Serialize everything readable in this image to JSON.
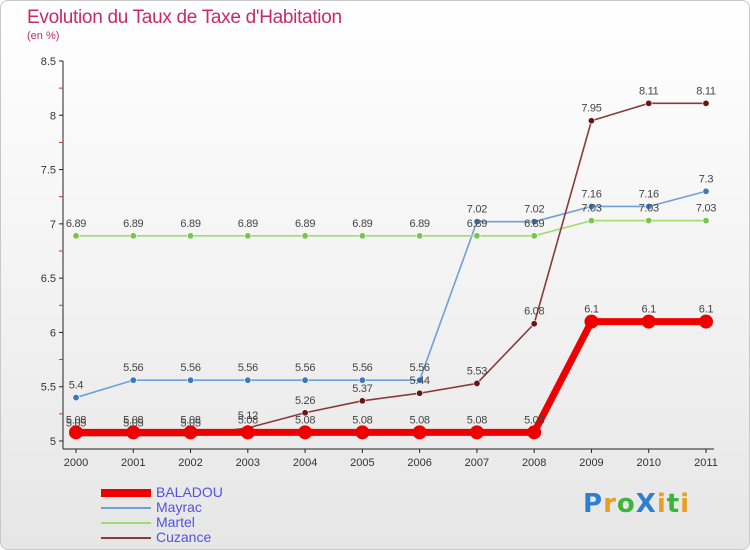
{
  "title": "Evolution du Taux de Taxe d'Habitation",
  "subtitle": "(en %)",
  "logo": {
    "text": "ProXiti",
    "letters": [
      {
        "ch": "P",
        "color": "#2f7fd0"
      },
      {
        "ch": "r",
        "color": "#e8a020"
      },
      {
        "ch": "o",
        "color": "#3db43d"
      },
      {
        "ch": "X",
        "color": "#2f7fd0"
      },
      {
        "ch": "i",
        "color": "#e8a020"
      },
      {
        "ch": "t",
        "color": "#3db43d"
      },
      {
        "ch": "i",
        "color": "#e8a020"
      }
    ]
  },
  "chart_data": {
    "type": "line",
    "x": [
      "2000",
      "2001",
      "2002",
      "2003",
      "2004",
      "2005",
      "2006",
      "2007",
      "2008",
      "2009",
      "2010",
      "2011"
    ],
    "ylim": [
      5,
      8.5
    ],
    "yticks": [
      "5",
      "5.5",
      "6",
      "6.5",
      "7",
      "7.5",
      "8",
      "8.5"
    ],
    "grid": false,
    "legend_position": "bottom-left",
    "series": [
      {
        "name": "BALADOU",
        "color": "#ee0000",
        "dot": "#ee0000",
        "width": 7,
        "r": 7,
        "values": [
          5.08,
          5.08,
          5.08,
          5.08,
          5.08,
          5.08,
          5.08,
          5.08,
          5.08,
          6.1,
          6.1,
          6.1
        ],
        "labels": [
          "5.08",
          "5.08",
          "5.08",
          "5.08",
          "5.08",
          "5.08",
          "5.08",
          "5.08",
          "5.08",
          "6.1",
          "6.1",
          "6.1"
        ]
      },
      {
        "name": "Mayrac",
        "color": "#6fa0d8",
        "dot": "#3a78c0",
        "width": 1.6,
        "r": 3.2,
        "values": [
          5.4,
          5.56,
          5.56,
          5.56,
          5.56,
          5.56,
          5.56,
          7.02,
          7.02,
          7.16,
          7.16,
          7.3
        ],
        "labels": [
          "5.4",
          "5.56",
          "5.56",
          "5.56",
          "5.56",
          "5.56",
          "5.56",
          "7.02",
          "7.02",
          "7.16",
          "7.16",
          "7.3"
        ]
      },
      {
        "name": "Martel",
        "color": "#9fdc70",
        "dot": "#7ac44a",
        "width": 1.6,
        "r": 3.2,
        "values": [
          6.89,
          6.89,
          6.89,
          6.89,
          6.89,
          6.89,
          6.89,
          6.89,
          6.89,
          7.03,
          7.03,
          7.03
        ],
        "labels": [
          "6.89",
          "6.89",
          "6.89",
          "6.89",
          "6.89",
          "6.89",
          "6.89",
          "6.89",
          "6.89",
          "7.03",
          "7.03",
          "7.03"
        ]
      },
      {
        "name": "Cuzance",
        "color": "#8a3a3a",
        "dot": "#6a1515",
        "width": 1.6,
        "r": 3.2,
        "values": [
          5.05,
          5.05,
          5.05,
          5.12,
          5.26,
          5.37,
          5.44,
          5.53,
          6.08,
          7.95,
          8.11,
          8.11
        ],
        "labels": [
          "5.05",
          "5.05",
          "5.05",
          "5.12",
          "5.26",
          "5.37",
          "5.44",
          "5.53",
          "6.08",
          "7.95",
          "8.11",
          "8.11"
        ]
      }
    ]
  }
}
